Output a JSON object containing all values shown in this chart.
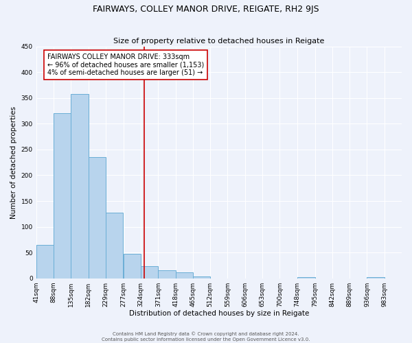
{
  "title": "FAIRWAYS, COLLEY MANOR DRIVE, REIGATE, RH2 9JS",
  "subtitle": "Size of property relative to detached houses in Reigate",
  "xlabel": "Distribution of detached houses by size in Reigate",
  "ylabel": "Number of detached properties",
  "bar_edges": [
    41,
    88,
    135,
    182,
    229,
    277,
    324,
    371,
    418,
    465,
    512,
    559,
    606,
    653,
    700,
    748,
    795,
    842,
    889,
    936,
    983
  ],
  "bar_heights": [
    65,
    320,
    358,
    235,
    127,
    48,
    24,
    16,
    12,
    4,
    0,
    0,
    0,
    0,
    0,
    2,
    0,
    0,
    0,
    2
  ],
  "bar_color": "#b8d4ed",
  "bar_edge_color": "#6aaed6",
  "vline_x": 333,
  "vline_color": "#cc0000",
  "annotation_line1": "FAIRWAYS COLLEY MANOR DRIVE: 333sqm",
  "annotation_line2": "← 96% of detached houses are smaller (1,153)",
  "annotation_line3": "4% of semi-detached houses are larger (51) →",
  "ylim": [
    0,
    450
  ],
  "yticks": [
    0,
    50,
    100,
    150,
    200,
    250,
    300,
    350,
    400,
    450
  ],
  "tick_labels": [
    "41sqm",
    "88sqm",
    "135sqm",
    "182sqm",
    "229sqm",
    "277sqm",
    "324sqm",
    "371sqm",
    "418sqm",
    "465sqm",
    "512sqm",
    "559sqm",
    "606sqm",
    "653sqm",
    "700sqm",
    "748sqm",
    "795sqm",
    "842sqm",
    "889sqm",
    "936sqm",
    "983sqm"
  ],
  "footer_line1": "Contains HM Land Registry data © Crown copyright and database right 2024.",
  "footer_line2": "Contains public sector information licensed under the Open Government Licence v3.0.",
  "background_color": "#eef2fb",
  "plot_bg_color": "#eef2fb",
  "grid_color": "#ffffff",
  "title_fontsize": 9.0,
  "subtitle_fontsize": 8.0,
  "axis_label_fontsize": 7.5,
  "tick_fontsize": 6.5,
  "annotation_fontsize": 7.0,
  "footer_fontsize": 5.0
}
